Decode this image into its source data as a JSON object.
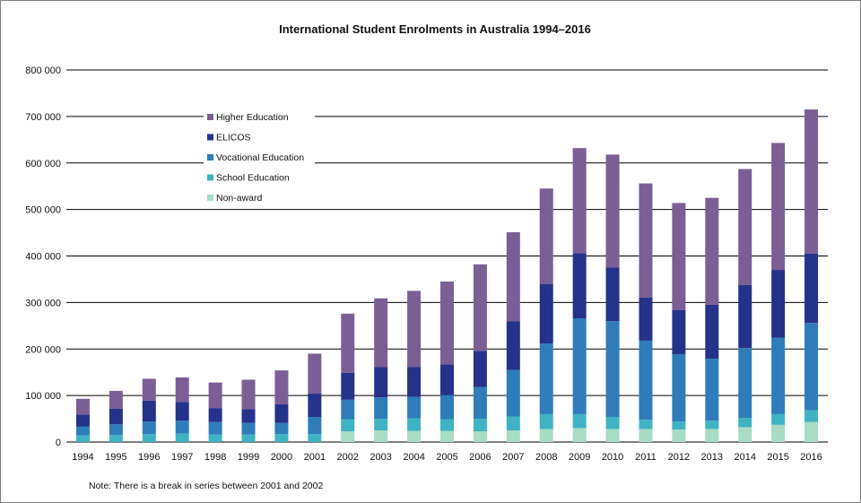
{
  "chart_data": {
    "type": "bar",
    "stacked": true,
    "title": "International Student Enrolments  in Australia 1994–2016",
    "note": "Note: There is a break in series between 2001 and 2002",
    "categories": [
      "1994",
      "1995",
      "1996",
      "1997",
      "1998",
      "1999",
      "2000",
      "2001",
      "2002",
      "2003",
      "2004",
      "2005",
      "2006",
      "2007",
      "2008",
      "2009",
      "2010",
      "2011",
      "2012",
      "2013",
      "2014",
      "2015",
      "2016"
    ],
    "y_ticks": [
      "0",
      "100 000",
      "200 000",
      "300 000",
      "400 000",
      "500 000",
      "600 000",
      "700 000",
      "800 000"
    ],
    "ylim": [
      0,
      800000
    ],
    "grid": true,
    "legend_position": "top-left",
    "series": [
      {
        "name": "Non-award",
        "color": "#a8dcc4",
        "values": [
          0,
          0,
          0,
          0,
          0,
          0,
          0,
          0,
          23000,
          25000,
          24000,
          24000,
          23000,
          25000,
          28000,
          30000,
          28000,
          28000,
          27000,
          28000,
          32000,
          37000,
          43000
        ]
      },
      {
        "name": "School Education",
        "color": "#3fb3c4",
        "values": [
          14000,
          15000,
          17000,
          18000,
          16000,
          16000,
          17000,
          17000,
          26000,
          25000,
          27000,
          25000,
          27000,
          30000,
          32000,
          30000,
          26000,
          20000,
          17000,
          18000,
          20000,
          23000,
          25000
        ]
      },
      {
        "name": "Vocational Education",
        "color": "#2e7dba",
        "values": [
          19000,
          23000,
          27000,
          28000,
          27000,
          25000,
          24000,
          37000,
          42000,
          46000,
          46000,
          52000,
          68000,
          100000,
          152000,
          206000,
          206000,
          170000,
          145000,
          133000,
          150000,
          164000,
          188000
        ]
      },
      {
        "name": "ELICOS",
        "color": "#25328a",
        "values": [
          26000,
          34000,
          45000,
          40000,
          30000,
          30000,
          40000,
          50000,
          58000,
          65000,
          64000,
          66000,
          78000,
          105000,
          128000,
          140000,
          115000,
          93000,
          95000,
          116000,
          136000,
          146000,
          149000
        ]
      },
      {
        "name": "Higher Education",
        "color": "#7b5e96",
        "values": [
          34000,
          38000,
          47000,
          53000,
          55000,
          63000,
          73000,
          86000,
          127000,
          148000,
          164000,
          178000,
          186000,
          191000,
          205000,
          226000,
          243000,
          245000,
          230000,
          230000,
          249000,
          273000,
          310000
        ]
      }
    ]
  }
}
